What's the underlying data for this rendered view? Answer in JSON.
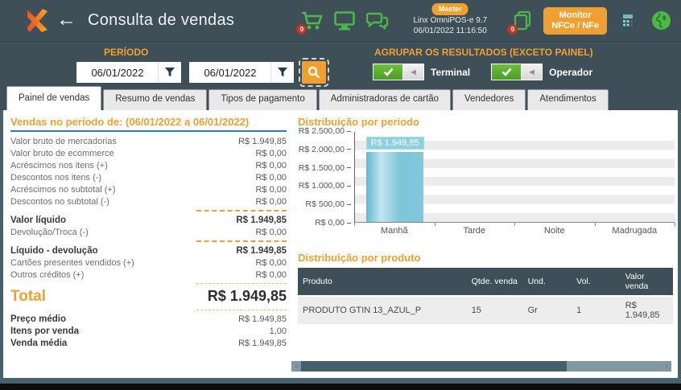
{
  "colors": {
    "topbar_bg": "#3e4f58",
    "accent_orange": "#f0a030",
    "icon_green": "#4db848",
    "badge_red": "#c0392b",
    "bar_blue": "#7fc6da",
    "heading_underline_blue": "#2e7eb8"
  },
  "header": {
    "title": "Consulta de vendas",
    "master_badge": "Master",
    "app_name": "Linx OmniPOS-e  9.7",
    "datetime": "06/01/2022  11:16:50",
    "cart_badge": "0",
    "documents_badge": "0",
    "monitor_button_line1": "Monitor",
    "monitor_button_line2": "NFCe / NFe"
  },
  "filters": {
    "period_label": "PERÍODO",
    "date_from": "06/01/2022",
    "date_to": "06/01/2022",
    "group_label": "AGRUPAR OS RESULTADOS (EXCETO PAINEL)",
    "toggles": [
      {
        "label": "Terminal",
        "state": "on"
      },
      {
        "label": "Operador",
        "state": "on"
      }
    ]
  },
  "tabs": [
    {
      "label": "Painel de vendas",
      "active": true
    },
    {
      "label": "Resumo de vendas",
      "active": false
    },
    {
      "label": "Tipos de pagamento",
      "active": false
    },
    {
      "label": "Administradoras de cartão",
      "active": false
    },
    {
      "label": "Vendedores",
      "active": false
    },
    {
      "label": "Atendimentos",
      "active": false
    }
  ],
  "summary": {
    "heading": "Vendas no período de: (06/01/2022 a 06/01/2022)",
    "rows": [
      {
        "label": "Valor bruto de mercadorias",
        "value": "R$ 1.949,85",
        "style": "normal"
      },
      {
        "label": "Valor bruto de ecommerce",
        "value": "R$ 0,00",
        "style": "normal"
      },
      {
        "label": "Acréscimos nos itens (+)",
        "value": "R$ 0,00",
        "style": "normal"
      },
      {
        "label": "Descontos nos itens (-)",
        "value": "R$ 0,00",
        "style": "normal"
      },
      {
        "label": "Acréscimos no subtotal (+)",
        "value": "R$ 0,00",
        "style": "normal"
      },
      {
        "label": "Descontos no subtotal (-)",
        "value": "R$ 0,00",
        "style": "normal"
      },
      {
        "type": "separator"
      },
      {
        "label": "Valor líquido",
        "value": "R$ 1.949,85",
        "style": "bold"
      },
      {
        "label": "Devolução/Troca (-)",
        "value": "R$ 0,00",
        "style": "normal"
      },
      {
        "type": "separator"
      },
      {
        "label": "Líquido - devolução",
        "value": "R$ 1.949,85",
        "style": "bold"
      },
      {
        "label": "Cartões presentes vendidos (+)",
        "value": "R$ 0,00",
        "style": "normal"
      },
      {
        "label": "Outros créditos (+)",
        "value": "R$ 0,00",
        "style": "normal"
      },
      {
        "type": "separator",
        "light": true
      },
      {
        "label": "Total",
        "value": "R$ 1.949,85",
        "style": "total"
      },
      {
        "type": "separator",
        "light": true
      },
      {
        "label": "Preço médio",
        "value": "R$ 1.949,85",
        "style": "bold-label"
      },
      {
        "label": "Itens por venda",
        "value": "1,00",
        "style": "bold-label"
      },
      {
        "label": "Venda média",
        "value": "R$ 1.949,85",
        "style": "bold-label"
      }
    ]
  },
  "chart_data": {
    "type": "bar",
    "title": "Distribuição por período",
    "categories": [
      "Manhã",
      "Tarde",
      "Noite",
      "Madrugada"
    ],
    "values": [
      1949.85,
      0,
      0,
      0
    ],
    "bar_labels": [
      "R$ 1.949,85",
      "",
      "",
      ""
    ],
    "ytick_labels": [
      "R$ 2.500,00",
      "R$ 2.000,00",
      "R$ 1.500,00",
      "R$ 1.000,00",
      "R$ 500,00",
      "R$ 0,00"
    ],
    "ylim": [
      0,
      2500
    ],
    "xlabel": "",
    "ylabel": "",
    "grid": "horizontal-bands",
    "legend": "none",
    "bar_color": "#7fc6da"
  },
  "product_table": {
    "title": "Distribuição por produto",
    "columns": [
      "Produto",
      "Qtde. venda",
      "Und.",
      "Vol.",
      "Valor venda"
    ],
    "col_widths": [
      "45%",
      "15%",
      "13%",
      "13%",
      "14%"
    ],
    "rows": [
      [
        "PRODUTO GTIN 13_AZUL_P",
        "15",
        "Gr",
        "1",
        "R$ 1.949,85"
      ]
    ]
  },
  "scrollbar": {
    "left_arrow": "‹",
    "right_arrow": "›"
  }
}
